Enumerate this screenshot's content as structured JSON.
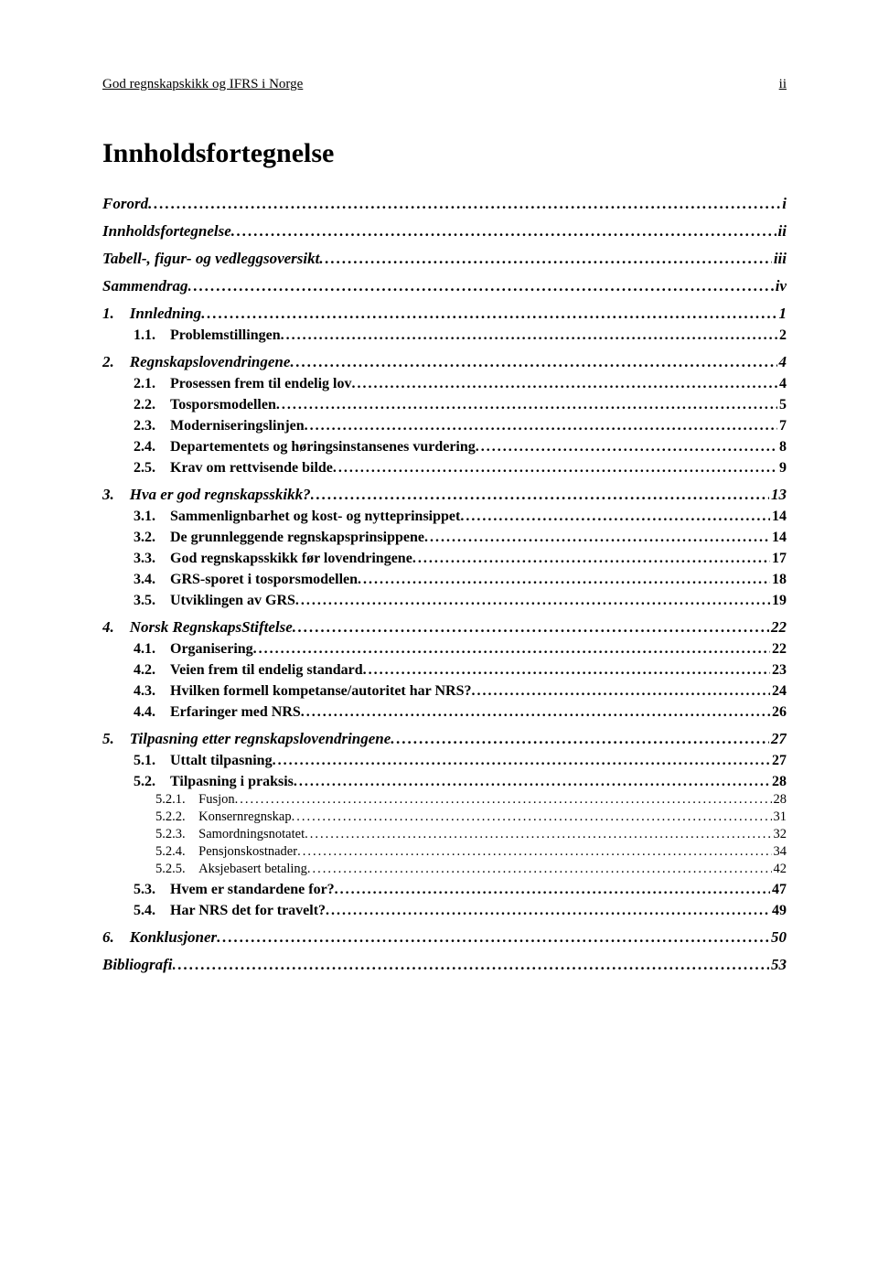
{
  "header": {
    "left": "God regnskapskikk og IFRS i Norge",
    "right": "ii"
  },
  "title": "Innholdsfortegnelse",
  "toc": [
    {
      "level": 0,
      "label": "Forord",
      "page": "i"
    },
    {
      "level": 0,
      "label": "Innholdsfortegnelse",
      "page": "ii"
    },
    {
      "level": 0,
      "label": "Tabell-, figur- og vedleggsoversikt",
      "page": "iii"
    },
    {
      "level": 0,
      "label": "Sammendrag",
      "page": "iv"
    },
    {
      "level": 0,
      "label": "1. Innledning",
      "page": "1"
    },
    {
      "level": 1,
      "label": "1.1. Problemstillingen",
      "page": "2"
    },
    {
      "level": 0,
      "label": "2. Regnskapslovendringene",
      "page": "4"
    },
    {
      "level": 1,
      "label": "2.1. Prosessen frem til endelig lov",
      "page": "4"
    },
    {
      "level": 1,
      "label": "2.2. Tosporsmodellen",
      "page": "5"
    },
    {
      "level": 1,
      "label": "2.3. Moderniseringslinjen",
      "page": "7"
    },
    {
      "level": 1,
      "label": "2.4. Departementets og høringsinstansenes vurdering",
      "page": "8"
    },
    {
      "level": 1,
      "label": "2.5. Krav om rettvisende bilde",
      "page": "9"
    },
    {
      "level": 0,
      "label": "3. Hva er god regnskapsskikk?",
      "page": "13"
    },
    {
      "level": 1,
      "label": "3.1. Sammenlignbarhet og kost- og nytteprinsippet",
      "page": "14"
    },
    {
      "level": 1,
      "label": "3.2. De grunnleggende regnskapsprinsippene",
      "page": "14"
    },
    {
      "level": 1,
      "label": "3.3. God regnskapsskikk før lovendringene",
      "page": "17"
    },
    {
      "level": 1,
      "label": "3.4. GRS-sporet i tosporsmodellen",
      "page": "18"
    },
    {
      "level": 1,
      "label": "3.5. Utviklingen av GRS",
      "page": "19"
    },
    {
      "level": 0,
      "label": "4. Norsk RegnskapsStiftelse",
      "page": "22"
    },
    {
      "level": 1,
      "label": "4.1. Organisering",
      "page": "22"
    },
    {
      "level": 1,
      "label": "4.2. Veien frem til endelig standard",
      "page": "23"
    },
    {
      "level": 1,
      "label": "4.3. Hvilken formell kompetanse/autoritet har NRS?",
      "page": "24"
    },
    {
      "level": 1,
      "label": "4.4. Erfaringer med NRS",
      "page": "26"
    },
    {
      "level": 0,
      "label": "5. Tilpasning etter regnskapslovendringene",
      "page": "27"
    },
    {
      "level": 1,
      "label": "5.1. Uttalt tilpasning",
      "page": "27"
    },
    {
      "level": 1,
      "label": "5.2. Tilpasning i praksis",
      "page": "28"
    },
    {
      "level": 2,
      "label": "5.2.1. Fusjon",
      "page": "28"
    },
    {
      "level": 2,
      "label": "5.2.2. Konsernregnskap",
      "page": "31"
    },
    {
      "level": 2,
      "label": "5.2.3. Samordningsnotatet",
      "page": "32"
    },
    {
      "level": 2,
      "label": "5.2.4. Pensjonskostnader",
      "page": "34"
    },
    {
      "level": 2,
      "label": "5.2.5. Aksjebasert betaling",
      "page": "42"
    },
    {
      "level": 1,
      "label": "5.3. Hvem er standardene for?",
      "page": "47"
    },
    {
      "level": 1,
      "label": "5.4. Har NRS det for travelt?",
      "page": "49"
    },
    {
      "level": 0,
      "label": "6. Konklusjoner",
      "page": "50"
    },
    {
      "level": 0,
      "label": "Bibliografi",
      "page": "53"
    }
  ]
}
